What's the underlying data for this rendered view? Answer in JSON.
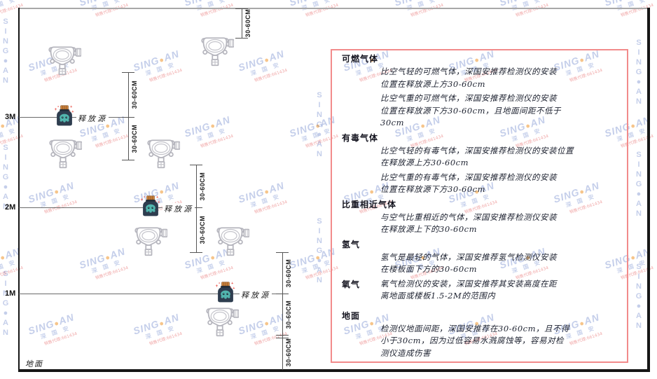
{
  "watermark": {
    "latin_prefix": "SING",
    "dot": "●",
    "latin_suffix": "AN",
    "cn": "深 国 安",
    "agent": "销售代理:661434"
  },
  "diagram": {
    "axis_labels": {
      "m3": "3M",
      "m2": "2M",
      "m1": "1M"
    },
    "ground_label": "地面",
    "release_source_label": "释放源",
    "dim_label": "30-60CM"
  },
  "panel": {
    "sections": [
      {
        "heading": "可燃气体",
        "paras": [
          "比空气轻的可燃气体，深国安推荐检测仪的安装\n位置在释放源上方30-60cm",
          "比空气重的可燃气体，深国安推荐检测仪的安装\n位置在释放源下方30-60cm，且地面间距不低于\n30cm"
        ]
      },
      {
        "heading": "有毒气体",
        "paras": [
          "比空气轻的有毒气体，深国安推荐检测仪的安装位置\n在释放源上方30-60cm",
          "比空气重的有毒气体，深国安推荐检测仪的安装\n位置在释放源下方30-60cm"
        ]
      },
      {
        "heading": "比重相近气体",
        "paras": [
          "与空气比重相近的气体，深国安推荐检测仪安装\n在释放源上下的30-60cm"
        ]
      },
      {
        "heading": "氢气",
        "paras": [
          "氢气是最轻的气体，深国安推荐氢气检测仪安装\n在楼板面下方的30-60cm"
        ]
      },
      {
        "heading": "氧气",
        "paras": [
          "氧气检测仪的安装，深国安推荐其安装高度在距\n离地面或楼板1.5-2M的范围内"
        ]
      },
      {
        "heading": "地面",
        "paras": [
          "检测仪地面间距，深国安推荐在30-60cm，且不得\n小于30cm，因为过低容易水溅腐蚀等，容易对检\n测仪造成伤害"
        ]
      }
    ]
  },
  "colors": {
    "panel_border": "#f28b8b",
    "watermark_blue": "#3a5eb9",
    "source_body": "#2e3d4f",
    "source_cap": "#c9813c",
    "source_face": "#52b5ae",
    "sparkle_red": "#e8483f"
  }
}
